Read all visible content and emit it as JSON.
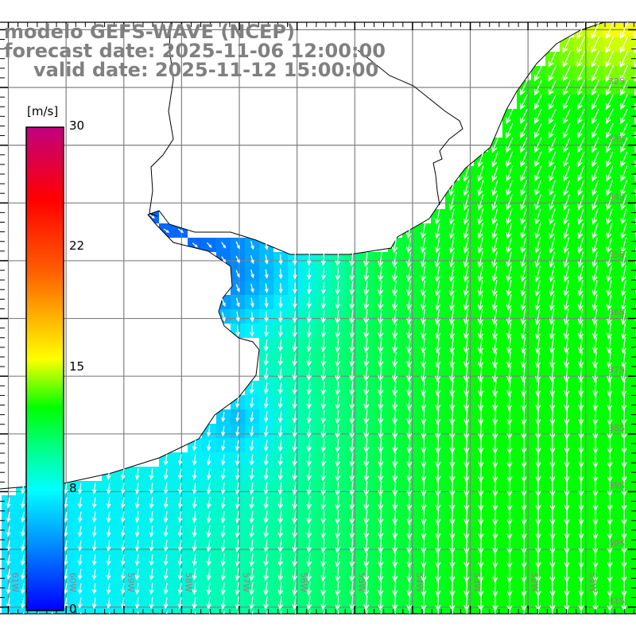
{
  "header": {
    "model": "modelo GEFS-WAVE (NCEP)",
    "forecast": "forecast date: 2025-11-06 12:00:00",
    "valid": "valid date: 2025-11-12 15:00:00"
  },
  "colorbar": {
    "unit": "[m/s]",
    "ticks": [
      "30",
      "22",
      "15",
      "8",
      "0"
    ],
    "colors": [
      "#c0007f",
      "#ff0000",
      "#ff8000",
      "#ffe000",
      "#00ff00",
      "#00ffa0",
      "#00ffff",
      "#0090ff",
      "#0000ff"
    ]
  },
  "map": {
    "lon_labels": [
      "61W",
      "60W",
      "59W",
      "58W",
      "57W",
      "56W",
      "55W",
      "54W",
      "53W",
      "52W",
      "51W"
    ],
    "lat_labels": [
      "32S",
      "33S",
      "34S",
      "35S",
      "36S",
      "37S",
      "38S",
      "39S",
      "40S",
      "41S"
    ],
    "grid_color": "#808080",
    "label_color": "#a07888",
    "arrow_color": "#ffffff"
  }
}
